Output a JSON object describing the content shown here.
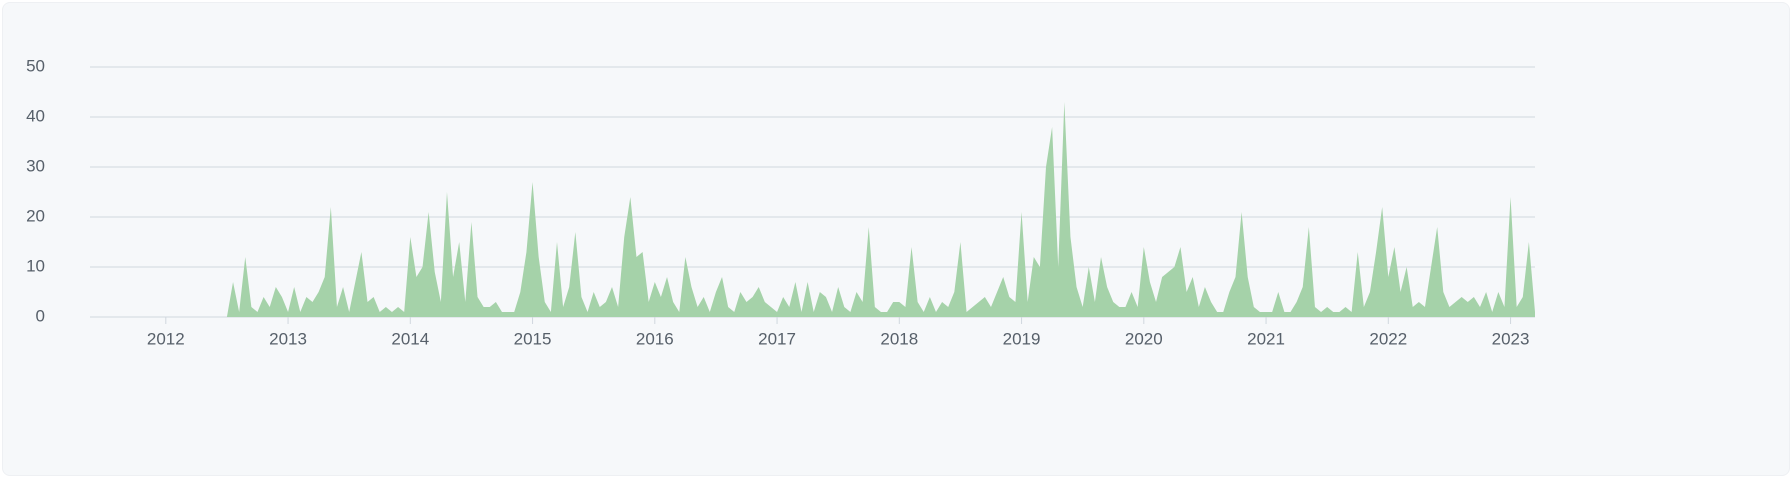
{
  "chart_data": {
    "type": "area",
    "color": "#a5d2a9",
    "grid": true,
    "xlim": [
      2011.38,
      2023.2
    ],
    "xticks": [
      2012,
      2013,
      2014,
      2015,
      2016,
      2017,
      2018,
      2019,
      2020,
      2021,
      2022,
      2023
    ],
    "ylim": [
      0,
      50
    ],
    "yticks": [
      0,
      10,
      20,
      30,
      40,
      50
    ],
    "x": [
      2011.4,
      2012.5,
      2012.55,
      2012.6,
      2012.65,
      2012.7,
      2012.75,
      2012.8,
      2012.85,
      2012.9,
      2012.95,
      2013,
      2013.05,
      2013.1,
      2013.15,
      2013.2,
      2013.25,
      2013.3,
      2013.35,
      2013.4,
      2013.45,
      2013.5,
      2013.55,
      2013.6,
      2013.65,
      2013.7,
      2013.75,
      2013.8,
      2013.85,
      2013.9,
      2013.95,
      2014,
      2014.05,
      2014.1,
      2014.15,
      2014.2,
      2014.25,
      2014.3,
      2014.35,
      2014.4,
      2014.45,
      2014.5,
      2014.55,
      2014.6,
      2014.65,
      2014.7,
      2014.75,
      2014.8,
      2014.85,
      2014.9,
      2014.95,
      2015,
      2015.05,
      2015.1,
      2015.15,
      2015.2,
      2015.25,
      2015.3,
      2015.35,
      2015.4,
      2015.45,
      2015.5,
      2015.55,
      2015.6,
      2015.65,
      2015.7,
      2015.75,
      2015.8,
      2015.85,
      2015.9,
      2015.95,
      2016,
      2016.05,
      2016.1,
      2016.15,
      2016.2,
      2016.25,
      2016.3,
      2016.35,
      2016.4,
      2016.45,
      2016.5,
      2016.55,
      2016.6,
      2016.65,
      2016.7,
      2016.75,
      2016.8,
      2016.85,
      2016.9,
      2016.95,
      2017,
      2017.05,
      2017.1,
      2017.15,
      2017.2,
      2017.25,
      2017.3,
      2017.35,
      2017.4,
      2017.45,
      2017.5,
      2017.55,
      2017.6,
      2017.65,
      2017.7,
      2017.75,
      2017.8,
      2017.85,
      2017.9,
      2017.95,
      2018,
      2018.05,
      2018.1,
      2018.15,
      2018.2,
      2018.25,
      2018.3,
      2018.35,
      2018.4,
      2018.45,
      2018.5,
      2018.55,
      2018.6,
      2018.65,
      2018.7,
      2018.75,
      2018.8,
      2018.85,
      2018.9,
      2018.95,
      2019,
      2019.05,
      2019.1,
      2019.15,
      2019.2,
      2019.25,
      2019.3,
      2019.35,
      2019.4,
      2019.45,
      2019.5,
      2019.55,
      2019.6,
      2019.65,
      2019.7,
      2019.75,
      2019.8,
      2019.85,
      2019.9,
      2019.95,
      2020,
      2020.05,
      2020.1,
      2020.15,
      2020.2,
      2020.25,
      2020.3,
      2020.35,
      2020.4,
      2020.45,
      2020.5,
      2020.55,
      2020.6,
      2020.65,
      2020.7,
      2020.75,
      2020.8,
      2020.85,
      2020.9,
      2020.95,
      2021,
      2021.05,
      2021.1,
      2021.15,
      2021.2,
      2021.25,
      2021.3,
      2021.35,
      2021.4,
      2021.45,
      2021.5,
      2021.55,
      2021.6,
      2021.65,
      2021.7,
      2021.75,
      2021.8,
      2021.85,
      2021.9,
      2021.95,
      2022,
      2022.05,
      2022.1,
      2022.15,
      2022.2,
      2022.25,
      2022.3,
      2022.35,
      2022.4,
      2022.45,
      2022.5,
      2022.55,
      2022.6,
      2022.65,
      2022.7,
      2022.75,
      2022.8,
      2022.85,
      2022.9,
      2022.95,
      2023,
      2023.05,
      2023.1,
      2023.15,
      2023.2
    ],
    "values": [
      0,
      0,
      7,
      1,
      12,
      2,
      1,
      4,
      2,
      6,
      4,
      1,
      6,
      1,
      4,
      3,
      5,
      8,
      22,
      2,
      6,
      1,
      7,
      13,
      3,
      4,
      1,
      2,
      1,
      2,
      1,
      16,
      8,
      10,
      21,
      9,
      3,
      25,
      8,
      15,
      3,
      19,
      4,
      2,
      2,
      3,
      1,
      1,
      1,
      5,
      13,
      27,
      12,
      3,
      1,
      15,
      2,
      6,
      17,
      4,
      1,
      5,
      2,
      3,
      6,
      2,
      16,
      24,
      12,
      13,
      3,
      7,
      4,
      8,
      3,
      1,
      12,
      6,
      2,
      4,
      1,
      5,
      8,
      2,
      1,
      5,
      3,
      4,
      6,
      3,
      2,
      1,
      4,
      2,
      7,
      1,
      7,
      1,
      5,
      4,
      1,
      6,
      2,
      1,
      5,
      3,
      18,
      2,
      1,
      1,
      3,
      3,
      2,
      14,
      3,
      1,
      4,
      1,
      3,
      2,
      5,
      15,
      1,
      2,
      3,
      4,
      2,
      5,
      8,
      4,
      3,
      21,
      3,
      12,
      10,
      30,
      38,
      10,
      43,
      16,
      6,
      2,
      10,
      3,
      12,
      6,
      3,
      2,
      2,
      5,
      2,
      14,
      7,
      3,
      8,
      9,
      10,
      14,
      5,
      8,
      2,
      6,
      3,
      1,
      1,
      5,
      8,
      21,
      8,
      2,
      1,
      1,
      1,
      5,
      1,
      1,
      3,
      6,
      18,
      2,
      1,
      2,
      1,
      1,
      2,
      1,
      13,
      2,
      5,
      13,
      22,
      8,
      14,
      5,
      10,
      2,
      3,
      2,
      10,
      18,
      5,
      2,
      3,
      4,
      3,
      4,
      2,
      5,
      1,
      5,
      2,
      24,
      2,
      4,
      15,
      1
    ]
  }
}
